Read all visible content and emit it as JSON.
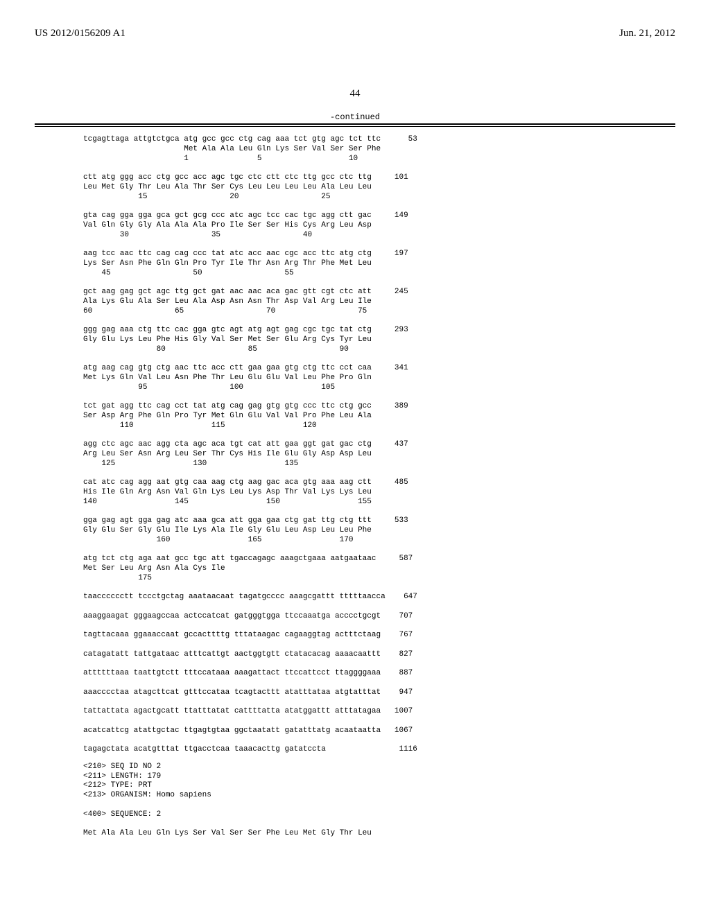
{
  "header": {
    "pub_number": "US 2012/0156209 A1",
    "pub_date": "Jun. 21, 2012"
  },
  "page_number": "44",
  "continued_label": "-continued",
  "sequence_lines": [
    "tcgagttaga attgtctgca atg gcc gcc ctg cag aaa tct gtg agc tct ttc      53",
    "                      Met Ala Ala Leu Gln Lys Ser Val Ser Ser Phe",
    "                      1               5                   10",
    "",
    "ctt atg ggg acc ctg gcc acc agc tgc ctc ctt ctc ttg gcc ctc ttg     101",
    "Leu Met Gly Thr Leu Ala Thr Ser Cys Leu Leu Leu Leu Ala Leu Leu",
    "            15                  20                  25",
    "",
    "gta cag gga gga gca gct gcg ccc atc agc tcc cac tgc agg ctt gac     149",
    "Val Gln Gly Gly Ala Ala Ala Pro Ile Ser Ser His Cys Arg Leu Asp",
    "        30                  35                  40",
    "",
    "aag tcc aac ttc cag cag ccc tat atc acc aac cgc acc ttc atg ctg     197",
    "Lys Ser Asn Phe Gln Gln Pro Tyr Ile Thr Asn Arg Thr Phe Met Leu",
    "    45                  50                  55",
    "",
    "gct aag gag gct agc ttg gct gat aac aac aca gac gtt cgt ctc att     245",
    "Ala Lys Glu Ala Ser Leu Ala Asp Asn Asn Thr Asp Val Arg Leu Ile",
    "60                  65                  70                  75",
    "",
    "ggg gag aaa ctg ttc cac gga gtc agt atg agt gag cgc tgc tat ctg     293",
    "Gly Glu Lys Leu Phe His Gly Val Ser Met Ser Glu Arg Cys Tyr Leu",
    "                80                  85                  90",
    "",
    "atg aag cag gtg ctg aac ttc acc ctt gaa gaa gtg ctg ttc cct caa     341",
    "Met Lys Gln Val Leu Asn Phe Thr Leu Glu Glu Val Leu Phe Pro Gln",
    "            95                  100                 105",
    "",
    "tct gat agg ttc cag cct tat atg cag gag gtg gtg ccc ttc ctg gcc     389",
    "Ser Asp Arg Phe Gln Pro Tyr Met Gln Glu Val Val Pro Phe Leu Ala",
    "        110                 115                 120",
    "",
    "agg ctc agc aac agg cta agc aca tgt cat att gaa ggt gat gac ctg     437",
    "Arg Leu Ser Asn Arg Leu Ser Thr Cys His Ile Glu Gly Asp Asp Leu",
    "    125                 130                 135",
    "",
    "cat atc cag agg aat gtg caa aag ctg aag gac aca gtg aaa aag ctt     485",
    "His Ile Gln Arg Asn Val Gln Lys Leu Lys Asp Thr Val Lys Lys Leu",
    "140                 145                 150                 155",
    "",
    "gga gag agt gga gag atc aaa gca att gga gaa ctg gat ttg ctg ttt     533",
    "Gly Glu Ser Gly Glu Ile Lys Ala Ile Gly Glu Leu Asp Leu Leu Phe",
    "                160                 165                 170",
    "",
    "atg tct ctg aga aat gcc tgc att tgaccagagc aaagctgaaa aatgaataac     587",
    "Met Ser Leu Arg Asn Ala Cys Ile",
    "            175",
    "",
    "taacccccctt tccctgctag aaataacaat tagatgcccc aaagcgattt tttttaacca    647",
    "",
    "aaaggaagat gggaagccaa actccatcat gatgggtgga ttccaaatga acccctgcgt    707",
    "",
    "tagttacaaa ggaaaccaat gccacttttg tttataagac cagaaggtag actttctaag    767",
    "",
    "catagatatt tattgataac atttcattgt aactggtgtt ctatacacag aaaacaattt    827",
    "",
    "attttttaaa taattgtctt tttccataaa aaagattact ttccattcct ttaggggaaa    887",
    "",
    "aaacccctaa atagcttcat gtttccataa tcagtacttt atatttataa atgtatttat    947",
    "",
    "tattattata agactgcatt ttatttatat cattttatta atatggattt atttatagaa   1007",
    "",
    "acatcattcg atattgctac ttgagtgtaa ggctaatatt gatatttatg acaataatta   1067",
    "",
    "tagagctata acatgtttat ttgacctcaa taaacacttg gatatccta                1116"
  ],
  "seq_meta": [
    "<210> SEQ ID NO 2",
    "<211> LENGTH: 179",
    "<212> TYPE: PRT",
    "<213> ORGANISM: Homo sapiens",
    "",
    "<400> SEQUENCE: 2",
    "",
    "Met Ala Ala Leu Gln Lys Ser Val Ser Ser Phe Leu Met Gly Thr Leu"
  ]
}
